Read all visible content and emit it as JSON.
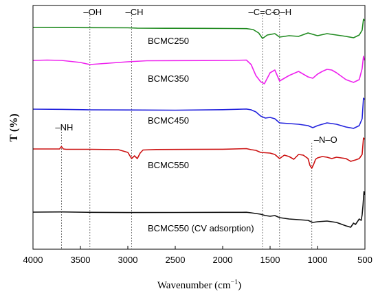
{
  "chart_data": {
    "type": "line",
    "xlabel": "Wavenumber (cm",
    "xlabel_sup": "−1",
    "xlabel_end": ")",
    "ylabel": "T (%)",
    "xlim": [
      4000,
      500
    ],
    "x_reversed": true,
    "xticks": [
      4000,
      3500,
      3000,
      2500,
      2000,
      1500,
      1000,
      500
    ],
    "y_tick_labels": false,
    "grid": false,
    "legend": "none",
    "series": [
      {
        "name": "BCMC250",
        "color": "#1f8a1f",
        "x": [
          4000,
          3700,
          3400,
          3000,
          2900,
          2600,
          2200,
          1900,
          1750,
          1680,
          1620,
          1580,
          1530,
          1450,
          1400,
          1300,
          1200,
          1100,
          1050,
          1000,
          900,
          800,
          700,
          620,
          560,
          530,
          515,
          505
        ],
        "y": [
          0.0,
          0.15,
          0.3,
          0.5,
          1.0,
          1.2,
          1.25,
          1.5,
          1.7,
          3.0,
          8.0,
          16.0,
          11.0,
          9.0,
          14.0,
          12.0,
          13.0,
          8.0,
          10.0,
          12.0,
          9.0,
          11.0,
          13.0,
          15.0,
          11.0,
          4.0,
          -12.0,
          -10.0
        ]
      },
      {
        "name": "BCMC350",
        "color": "#ee22ee",
        "x": [
          4000,
          3850,
          3700,
          3500,
          3400,
          3300,
          3000,
          2800,
          2500,
          2200,
          1900,
          1750,
          1700,
          1650,
          1600,
          1560,
          1500,
          1450,
          1400,
          1300,
          1200,
          1100,
          1050,
          1000,
          950,
          900,
          850,
          800,
          700,
          620,
          560,
          530,
          515,
          505
        ],
        "y": [
          0.0,
          -0.5,
          0.0,
          3.0,
          6.0,
          5.0,
          2.0,
          0.5,
          0.3,
          0.2,
          0.0,
          -0.5,
          6.0,
          22.0,
          31.0,
          34.0,
          18.0,
          14.0,
          30.0,
          22.0,
          16.0,
          24.0,
          26.0,
          20.0,
          16.0,
          13.0,
          14.0,
          18.0,
          28.0,
          32.0,
          28.0,
          12.0,
          -6.0,
          0.0
        ]
      },
      {
        "name": "BCMC450",
        "color": "#2222dd",
        "x": [
          4000,
          3700,
          3400,
          3000,
          2500,
          2000,
          1750,
          1700,
          1650,
          1600,
          1550,
          1500,
          1450,
          1400,
          1300,
          1200,
          1100,
          1050,
          1000,
          900,
          800,
          700,
          620,
          560,
          530,
          515,
          505
        ],
        "y": [
          0.0,
          0.3,
          1.0,
          1.2,
          1.5,
          0.8,
          -0.2,
          1.0,
          4.0,
          10.0,
          13.0,
          12.0,
          14.0,
          20.0,
          21.0,
          22.0,
          24.0,
          27.0,
          24.0,
          20.0,
          22.0,
          26.0,
          28.0,
          24.0,
          14.0,
          -16.0,
          -14.0
        ]
      },
      {
        "name": "BCMC550",
        "color": "#cc1111",
        "x": [
          4000,
          3720,
          3700,
          3680,
          3650,
          3400,
          3100,
          3000,
          2960,
          2930,
          2900,
          2870,
          2840,
          2700,
          2300,
          2000,
          1750,
          1700,
          1650,
          1600,
          1500,
          1450,
          1400,
          1350,
          1300,
          1250,
          1200,
          1150,
          1100,
          1080,
          1060,
          1040,
          1020,
          1000,
          950,
          900,
          850,
          800,
          700,
          650,
          600,
          560,
          530,
          515,
          505
        ],
        "y": [
          0.0,
          0.0,
          -3.5,
          0.0,
          0.5,
          0.5,
          1.0,
          5.0,
          14.0,
          10.0,
          14.0,
          6.0,
          1.5,
          0.8,
          0.6,
          0.4,
          -0.5,
          1.0,
          2.0,
          5.0,
          6.0,
          8.0,
          14.0,
          9.0,
          11.0,
          15.0,
          8.0,
          9.0,
          14.0,
          24.0,
          28.0,
          22.0,
          15.0,
          13.0,
          11.0,
          12.0,
          14.0,
          12.0,
          14.0,
          18.0,
          16.0,
          14.0,
          8.0,
          -16.0,
          -14.0
        ]
      },
      {
        "name": "BCMC550 (CV adsorption)",
        "color": "#111111",
        "x": [
          4000,
          3700,
          3400,
          3000,
          2500,
          2000,
          1800,
          1750,
          1700,
          1650,
          1600,
          1550,
          1500,
          1450,
          1400,
          1300,
          1200,
          1100,
          1050,
          1000,
          900,
          800,
          700,
          650,
          620,
          600,
          580,
          560,
          540,
          530,
          520,
          510,
          505
        ],
        "y": [
          0.0,
          -0.3,
          0.3,
          0.6,
          0.5,
          0.3,
          0.3,
          0.2,
          1.0,
          2.0,
          3.0,
          5.0,
          6.0,
          5.0,
          8.0,
          10.0,
          11.0,
          12.0,
          15.0,
          14.0,
          13.0,
          15.0,
          20.0,
          22.0,
          16.0,
          18.0,
          14.0,
          10.0,
          12.0,
          4.0,
          -10.0,
          -30.0,
          -25.0
        ]
      }
    ],
    "group_labels": [
      {
        "text": "–OH",
        "x": 3400
      },
      {
        "text": "–CH",
        "x": 2960
      },
      {
        "text": "–C=C–",
        "x": 1580
      },
      {
        "text": "O–H",
        "x": 1400
      },
      {
        "text": "–NH",
        "x": 3700
      },
      {
        "text": "–N–O",
        "x": 1060
      }
    ]
  }
}
